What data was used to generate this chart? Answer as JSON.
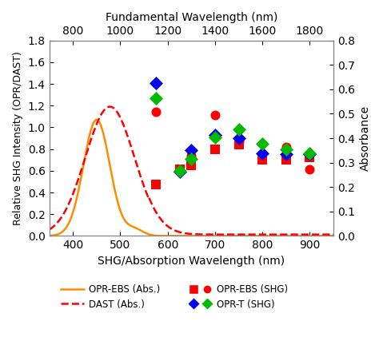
{
  "title": "Fundamental Wavelength (nm)",
  "xlabel": "SHG/Absorption Wavelength (nm)",
  "ylabel_left": "Relative SHG Intensity (OPR/DAST)",
  "ylabel_right": "Absorbance",
  "xlim": [
    350,
    950
  ],
  "ylim_left": [
    0.0,
    1.8
  ],
  "ylim_right": [
    0.0,
    0.8
  ],
  "opr_ebs_abs_color": "#FF8C00",
  "dast_abs_color": "#FF0000",
  "red_color": "#FF0000",
  "blue_color": "#0000EE",
  "green_color": "#00BB00",
  "shg_x_vals": [
    575,
    625,
    650,
    700,
    750,
    800,
    850,
    900
  ],
  "opr_ebs_shg_square": [
    0.47,
    0.61,
    0.65,
    0.8,
    0.84,
    0.7,
    0.7,
    0.72
  ],
  "opr_ebs_shg_circle": [
    1.14,
    null,
    0.74,
    1.11,
    0.87,
    null,
    0.82,
    0.61
  ],
  "opr_t_shg_blue": [
    1.41,
    0.59,
    0.79,
    0.93,
    0.9,
    0.76,
    0.75,
    0.75
  ],
  "opr_t_shg_green": [
    1.27,
    0.6,
    0.71,
    0.91,
    0.98,
    0.85,
    0.8,
    0.76
  ],
  "marker_size": 75,
  "abs_linewidth": 1.8
}
